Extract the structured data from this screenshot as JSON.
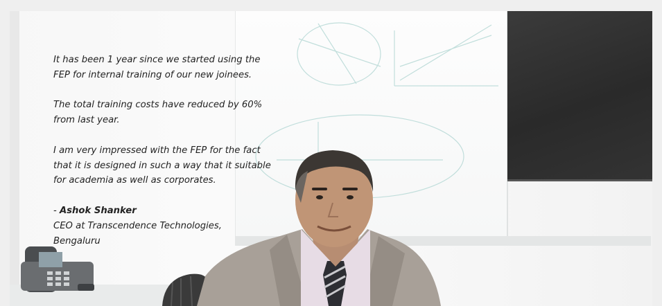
{
  "testimonial": {
    "paragraphs": [
      "It has been 1 year since we started using the FEP for internal training of our new joinees.",
      "The total training costs have reduced by 60% from last year.",
      "I am very impressed with the FEP for the fact that it is designed in such a way that it suitable for academia as well as corporates."
    ],
    "author_prefix": "- ",
    "author_name": "Ashok Shanker",
    "author_title": "CEO at Transcendence Technologies,",
    "author_location": "Bengaluru"
  },
  "colors": {
    "background": "#efefef",
    "text": "#222222",
    "suit": "#a59d95",
    "tv": "#2e2e2e"
  }
}
